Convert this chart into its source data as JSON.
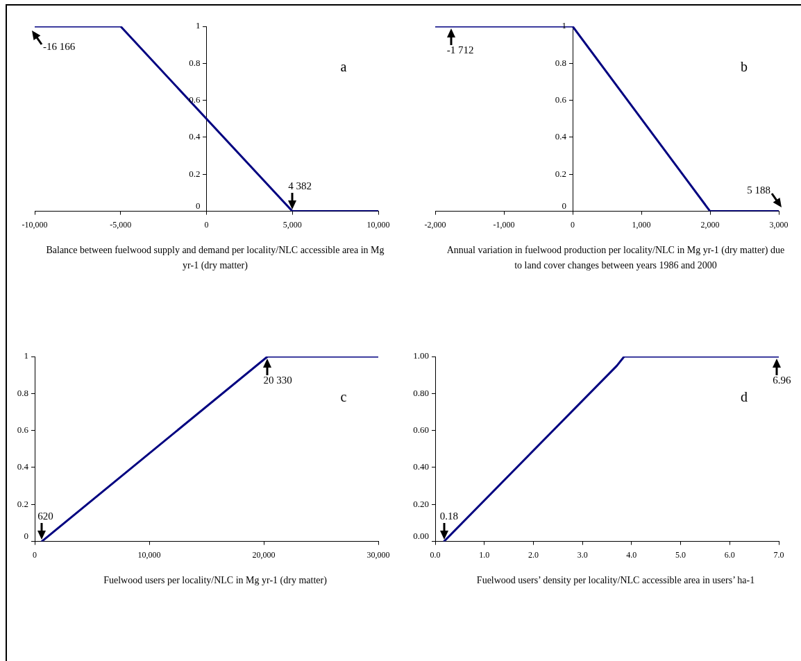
{
  "chart_data": [
    {
      "type": "line",
      "marker": "none",
      "xlabel": "Balance between fuelwood supply and demand per locality/NLC accessible area in Mg yr-1 (dry matter)",
      "series": [
        {
          "color": "#000080",
          "x": [
            -10000,
            -5000,
            5000,
            10000
          ],
          "values": [
            1,
            1,
            0,
            0
          ]
        }
      ],
      "xlim": [
        -10000,
        10000
      ],
      "xticks": [
        {
          "value": -10000,
          "label": "-10,000"
        },
        {
          "value": -5000,
          "label": "-5,000"
        },
        {
          "value": 0,
          "label": "0"
        },
        {
          "value": 5000,
          "label": "5,000"
        },
        {
          "value": 10000,
          "label": "10,000"
        }
      ],
      "ylim": [
        0,
        1
      ],
      "yticks": [
        0,
        0.2,
        0.4,
        0.6,
        0.8,
        1
      ],
      "annotations": [
        "a",
        {
          "text": "-16 166",
          "x": -10000,
          "y": 1
        },
        {
          "text": "4 382",
          "x": 5000,
          "y": 0
        }
      ]
    },
    {
      "type": "line",
      "marker": "none",
      "xlabel": "Annual variation in fuelwood production per locality/NLC in Mg yr-1 (dry matter) due to land cover changes between years 1986 and 2000",
      "series": [
        {
          "color": "#000080",
          "x": [
            -2000,
            0,
            2000,
            3000
          ],
          "values": [
            1,
            1,
            0,
            0
          ]
        }
      ],
      "xlim": [
        -2000,
        3000
      ],
      "xticks": [
        {
          "value": -2000,
          "label": "-2,000"
        },
        {
          "value": -1000,
          "label": "-1,000"
        },
        {
          "value": 0,
          "label": "0"
        },
        {
          "value": 1000,
          "label": "1,000"
        },
        {
          "value": 2000,
          "label": "2,000"
        },
        {
          "value": 3000,
          "label": "3,000"
        }
      ],
      "ylim": [
        0,
        1
      ],
      "yticks": [
        0,
        0.2,
        0.4,
        0.6,
        0.8,
        1
      ],
      "annotations": [
        "b",
        {
          "text": "-1 712",
          "x": -1770,
          "y": 1
        },
        {
          "text": "5 188",
          "x": 3000,
          "y": 0
        }
      ]
    },
    {
      "type": "line",
      "marker": "none",
      "xlabel": "Fuelwood users per locality/NLC in Mg yr-1 (dry matter)",
      "series": [
        {
          "color": "#000080",
          "x": [
            620,
            20330,
            30000
          ],
          "values": [
            0,
            1,
            1
          ]
        }
      ],
      "xlim": [
        0,
        30000
      ],
      "xticks": [
        {
          "value": 0,
          "label": "0"
        },
        {
          "value": 10000,
          "label": "10,000"
        },
        {
          "value": 20000,
          "label": "20,000"
        },
        {
          "value": 30000,
          "label": "30,000"
        }
      ],
      "ylim": [
        0,
        1
      ],
      "yticks": [
        0,
        0.2,
        0.4,
        0.6,
        0.8,
        1
      ],
      "annotations": [
        "c",
        {
          "text": "620",
          "x": 620,
          "y": 0
        },
        {
          "text": "20 330",
          "x": 20330,
          "y": 1
        }
      ]
    },
    {
      "type": "line",
      "marker": "none",
      "xlabel": "Fuelwood users’ density per locality/NLC accessible area in users’ ha-1",
      "series": [
        {
          "color": "#000080",
          "x": [
            0.18,
            3.7,
            3.85,
            7
          ],
          "values": [
            0,
            0.95,
            1,
            1
          ]
        }
      ],
      "xlim": [
        0,
        7
      ],
      "xticks": [
        {
          "value": 0,
          "label": "0.0"
        },
        {
          "value": 1,
          "label": "1.0"
        },
        {
          "value": 2,
          "label": "2.0"
        },
        {
          "value": 3,
          "label": "3.0"
        },
        {
          "value": 4,
          "label": "4.0"
        },
        {
          "value": 5,
          "label": "5.0"
        },
        {
          "value": 6,
          "label": "6.0"
        },
        {
          "value": 7,
          "label": "7.0"
        }
      ],
      "ylim": [
        0,
        1
      ],
      "yticks": [
        {
          "value": 0,
          "label": "0.00"
        },
        {
          "value": 0.2,
          "label": "0.20"
        },
        {
          "value": 0.4,
          "label": "0.40"
        },
        {
          "value": 0.6,
          "label": "0.60"
        },
        {
          "value": 0.8,
          "label": "0.80"
        },
        {
          "value": 1,
          "label": "1.00"
        }
      ],
      "annotations": [
        "d",
        {
          "text": "0.18",
          "x": 0.18,
          "y": 0
        },
        {
          "text": "6.96",
          "x": 6.96,
          "y": 1
        }
      ]
    }
  ]
}
